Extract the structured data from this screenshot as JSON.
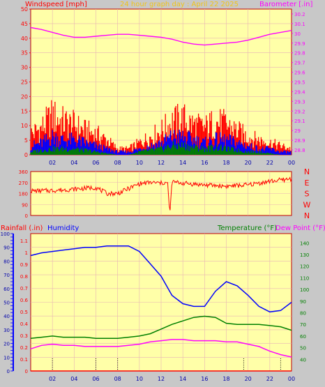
{
  "colors": {
    "background": "#c8c8c8",
    "plot": "#ffffa8",
    "grid": "#e8b4b4",
    "red": "#ff0000",
    "blue": "#0000ff",
    "green": "#008000",
    "magenta": "#ff00ff",
    "title": "#f0c419"
  },
  "chart_data": [
    {
      "type": "line",
      "title": "24 hour graph day : April 22 2025",
      "left_axis_label": "Windspeed [mph]",
      "right_axis_label": "Barometer [.in]",
      "y_left_ticks": [
        "0",
        "5",
        "10",
        "15",
        "20",
        "25",
        "30",
        "35",
        "40",
        "45",
        "50"
      ],
      "y_right_ticks": [
        "28.8",
        "28.9",
        "29",
        "29.1",
        "29.2",
        "29.3",
        "29.4",
        "29.5",
        "29.6",
        "29.7",
        "29.8",
        "29.9",
        "30",
        "30.1",
        "30.2"
      ],
      "x_tick_labels": [
        "02",
        "04",
        "06",
        "08",
        "10",
        "12",
        "14",
        "16",
        "18",
        "20",
        "22",
        "00"
      ],
      "ylim_left": [
        0,
        50
      ],
      "ylim_right": [
        28.75,
        30.25
      ],
      "x_range_hours": [
        0,
        24
      ],
      "grid": true,
      "series": [
        {
          "name": "Barometer",
          "color": "#ff00ff",
          "axis": "right",
          "x": [
            0,
            1,
            2,
            3,
            4,
            5,
            6,
            7,
            8,
            9,
            10,
            11,
            12,
            13,
            14,
            15,
            16,
            17,
            18,
            19,
            20,
            21,
            22,
            23,
            24
          ],
          "y": [
            30.06,
            30.04,
            30.01,
            29.98,
            29.96,
            29.96,
            29.97,
            29.98,
            29.99,
            29.99,
            29.98,
            29.97,
            29.96,
            29.94,
            29.91,
            29.89,
            29.88,
            29.89,
            29.9,
            29.91,
            29.93,
            29.96,
            29.99,
            30.01,
            30.03
          ]
        }
      ],
      "wind_bands": [
        {
          "name": "Gust",
          "color": "#ff0000",
          "x": [
            0,
            1,
            2,
            3,
            4,
            5,
            6,
            7,
            8,
            9,
            10,
            11,
            12,
            13,
            14,
            15,
            16,
            17,
            18,
            19,
            20,
            21,
            22,
            23,
            24
          ],
          "y": [
            7,
            9,
            13,
            11,
            10,
            8,
            7,
            5,
            2,
            2,
            4,
            6,
            8,
            11,
            12,
            10,
            9,
            11,
            10,
            8,
            6,
            5,
            4,
            3,
            2
          ]
        },
        {
          "name": "Average",
          "color": "#0000ff",
          "x": [
            0,
            1,
            2,
            3,
            4,
            5,
            6,
            7,
            8,
            9,
            10,
            11,
            12,
            13,
            14,
            15,
            16,
            17,
            18,
            19,
            20,
            21,
            22,
            23,
            24
          ],
          "y": [
            3,
            4,
            6,
            5,
            5,
            4,
            3,
            2,
            1,
            1,
            2,
            3,
            4,
            6,
            6,
            5,
            4,
            5,
            5,
            4,
            3,
            2,
            2,
            1,
            1
          ]
        },
        {
          "name": "Low",
          "color": "#008000",
          "x": [
            0,
            1,
            2,
            3,
            4,
            5,
            6,
            7,
            8,
            9,
            10,
            11,
            12,
            13,
            14,
            15,
            16,
            17,
            18,
            19,
            20,
            21,
            22,
            23,
            24
          ],
          "y": [
            1,
            1.5,
            2,
            2,
            2,
            1.5,
            1,
            0.5,
            0,
            0,
            1,
            1.5,
            2,
            3,
            3,
            2.5,
            2,
            2.5,
            2,
            1.5,
            1,
            1,
            0.5,
            0,
            0
          ]
        }
      ]
    },
    {
      "type": "line",
      "right_labels": [
        "N",
        "W",
        "S",
        "E",
        "N"
      ],
      "y_ticks": [
        "0",
        "90",
        "180",
        "270",
        "360"
      ],
      "ylim": [
        0,
        360
      ],
      "x_range_hours": [
        0,
        24
      ],
      "series": [
        {
          "name": "Wind direction",
          "color": "#ff0000",
          "x": [
            0,
            2,
            4,
            6,
            7,
            8,
            10,
            11,
            12,
            12.6,
            12.8,
            13,
            14,
            16,
            18,
            20,
            22,
            24
          ],
          "y": [
            200,
            205,
            215,
            230,
            180,
            180,
            260,
            270,
            265,
            270,
            10,
            275,
            265,
            250,
            240,
            250,
            280,
            300
          ]
        }
      ]
    },
    {
      "type": "line",
      "left_axis_label": "Rainfall (.in)",
      "humidity_label": "Humidity",
      "right_axis_label_1": "Temperature (°F)",
      "right_axis_label_2": "Dew Point (°F)",
      "y_left_rain_ticks": [
        "0",
        "0.1",
        "0.2",
        "0.3",
        "0.4",
        "0.5",
        "0.6",
        "0.7",
        "0.8",
        "0.9",
        "1",
        "1.1"
      ],
      "y_left_humidity_ticks": [
        "0",
        "10",
        "20",
        "30",
        "40",
        "50",
        "60",
        "70",
        "80",
        "90",
        "100"
      ],
      "y_right_ticks": [
        "40",
        "50",
        "60",
        "70",
        "80",
        "90",
        "100",
        "110",
        "120",
        "130",
        "140"
      ],
      "ylim_humidity": [
        0,
        100
      ],
      "ylim_temperature": [
        30,
        148
      ],
      "x_tick_labels": [
        "02",
        "04",
        "06",
        "08",
        "10",
        "12",
        "14",
        "16",
        "18",
        "20",
        "22",
        "00"
      ],
      "x_range_hours": [
        0,
        24
      ],
      "grid": true,
      "series": [
        {
          "name": "Humidity",
          "color": "#0000ff",
          "axis": "humidity",
          "x": [
            0,
            1,
            2,
            3,
            4,
            5,
            6,
            7,
            8,
            9,
            10,
            11,
            12,
            13,
            14,
            15,
            16,
            17,
            18,
            19,
            20,
            21,
            22,
            23,
            24
          ],
          "y": [
            84,
            86,
            87,
            88,
            89,
            90,
            90,
            91,
            91,
            91,
            87,
            78,
            69,
            55,
            49,
            47,
            47,
            58,
            65,
            62,
            55,
            47,
            43,
            44,
            50
          ]
        },
        {
          "name": "Temperature",
          "color": "#008000",
          "axis": "temperature",
          "x": [
            0,
            1,
            2,
            3,
            4,
            5,
            6,
            7,
            8,
            9,
            10,
            11,
            12,
            13,
            14,
            15,
            16,
            17,
            18,
            19,
            20,
            21,
            22,
            23,
            24
          ],
          "y": [
            58,
            59,
            60,
            59,
            59,
            59,
            58,
            58,
            58,
            59,
            60,
            62,
            66,
            70,
            73,
            76,
            77,
            76,
            71,
            70,
            70,
            70,
            69,
            68,
            65
          ]
        },
        {
          "name": "Dew Point",
          "color": "#ff00ff",
          "axis": "temperature",
          "x": [
            0,
            1,
            2,
            3,
            4,
            5,
            6,
            7,
            8,
            9,
            10,
            11,
            12,
            13,
            14,
            15,
            16,
            17,
            18,
            19,
            20,
            21,
            22,
            23,
            24
          ],
          "y": [
            49,
            52,
            53,
            52,
            52,
            51,
            51,
            51,
            51,
            52,
            53,
            55,
            56,
            57,
            57,
            56,
            56,
            56,
            55,
            55,
            53,
            51,
            47,
            44,
            42
          ]
        },
        {
          "name": "Rainfall",
          "color": "#ff0000",
          "axis": "rain",
          "x": [
            0,
            24
          ],
          "y": [
            0,
            0
          ]
        }
      ]
    }
  ]
}
